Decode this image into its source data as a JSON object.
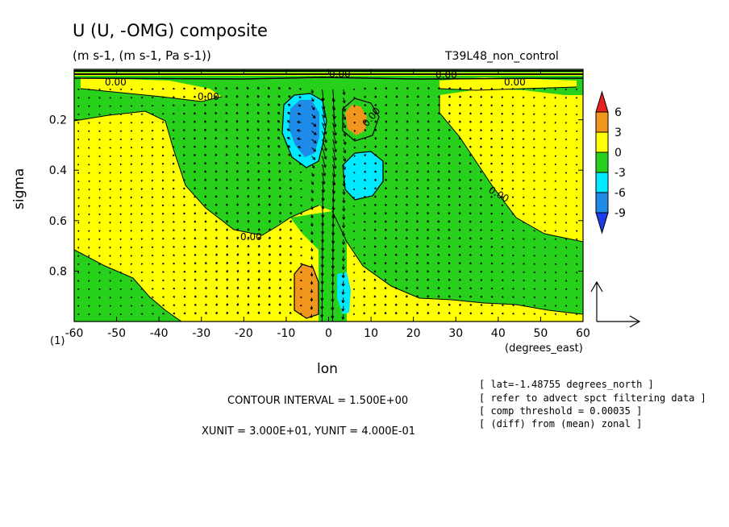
{
  "chart_data": {
    "type": "contour",
    "title": "U (U, -OMG) composite",
    "subtitle": "(m s-1, (m s-1, Pa s-1))",
    "run": "T39L48_non_control",
    "xlabel": "lon",
    "xunit": "(degrees_east)",
    "ylabel": "sigma",
    "x_ticks": [
      "-60",
      "-50",
      "-40",
      "-30",
      "-20",
      "-10",
      "0",
      "10",
      "20",
      "30",
      "40",
      "50",
      "60"
    ],
    "y_ticks": [
      "0.2",
      "0.4",
      "0.6",
      "0.8"
    ],
    "xlim": [
      -60,
      60
    ],
    "ylim": [
      1.0,
      0.0
    ],
    "y_inverted": true,
    "axis_note": "(1)",
    "contour_label": "0.00",
    "colorbar": {
      "ticks": [
        "6",
        "3",
        "0",
        "-3",
        "-6",
        "-9"
      ],
      "levels": [
        {
          "range": ">6",
          "color": "#e8231c"
        },
        {
          "range": "3 to 6",
          "color": "#f0961e"
        },
        {
          "range": "0 to 3",
          "color": "#ffff00"
        },
        {
          "range": "-3 to 0",
          "color": "#27d11b"
        },
        {
          "range": "-6 to -3",
          "color": "#00eaff"
        },
        {
          "range": "-9 to -6",
          "color": "#1e8be8"
        },
        {
          "range": "<-9",
          "color": "#1e3ce8"
        }
      ]
    },
    "contour_interval": "CONTOUR INTERVAL = 1.500E+00",
    "vector_units": "XUNIT = 3.000E+01, YUNIT = 4.000E-01",
    "notes": [
      "[ lat=-1.48755 degrees_north ]",
      "[ refer to advect spct filtering data ]",
      "[ comp threshold = 0.00035 ]",
      "[ (diff) from (mean) zonal ]"
    ]
  }
}
